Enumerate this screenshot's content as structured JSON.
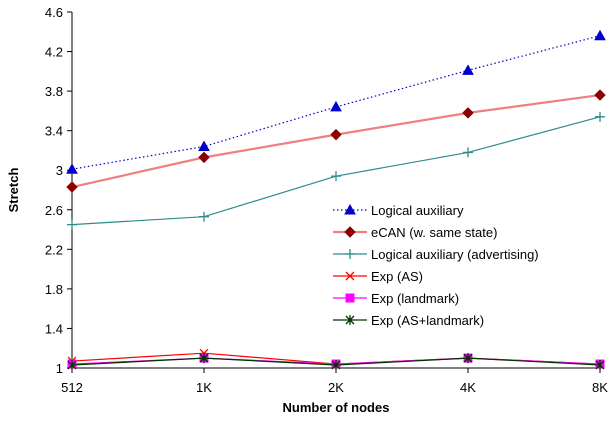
{
  "chart_data": {
    "type": "line",
    "title": "",
    "xlabel": "Number of nodes",
    "ylabel": "Stretch",
    "categories": [
      "512",
      "1K",
      "2K",
      "4K",
      "8K"
    ],
    "yticks": [
      "1",
      "1.4",
      "1.8",
      "2.2",
      "2.6",
      "3",
      "3.4",
      "3.8",
      "4.2",
      "4.6"
    ],
    "ylim": [
      1,
      4.6
    ],
    "grid": false,
    "legend_position": "right",
    "series": [
      {
        "name": "Logical auxiliary",
        "values": [
          3.01,
          3.24,
          3.64,
          4.01,
          4.36
        ],
        "color": "#0000cc",
        "marker": "triangle",
        "line": "dotted"
      },
      {
        "name": "eCAN (w. same state)",
        "values": [
          2.83,
          3.13,
          3.36,
          3.58,
          3.76
        ],
        "color": "#f08080",
        "marker": "diamond",
        "marker_color": "#8b0000",
        "line": "solid-thick"
      },
      {
        "name": "Logical auxiliary (advertising)",
        "values": [
          2.45,
          2.53,
          2.94,
          3.18,
          3.54
        ],
        "color": "#2e8b8b",
        "marker": "plus",
        "line": "solid"
      },
      {
        "name": "Exp (AS)",
        "values": [
          1.07,
          1.15,
          1.04,
          1.1,
          1.04
        ],
        "color": "#ff0000",
        "marker": "x",
        "line": "solid"
      },
      {
        "name": "Exp (landmark)",
        "values": [
          1.04,
          1.1,
          1.04,
          1.1,
          1.04
        ],
        "color": "#ff00ff",
        "marker": "square",
        "line": "solid"
      },
      {
        "name": "Exp (AS+landmark)",
        "values": [
          1.03,
          1.1,
          1.03,
          1.1,
          1.03
        ],
        "color": "#003300",
        "marker": "asterisk",
        "line": "solid"
      }
    ]
  }
}
